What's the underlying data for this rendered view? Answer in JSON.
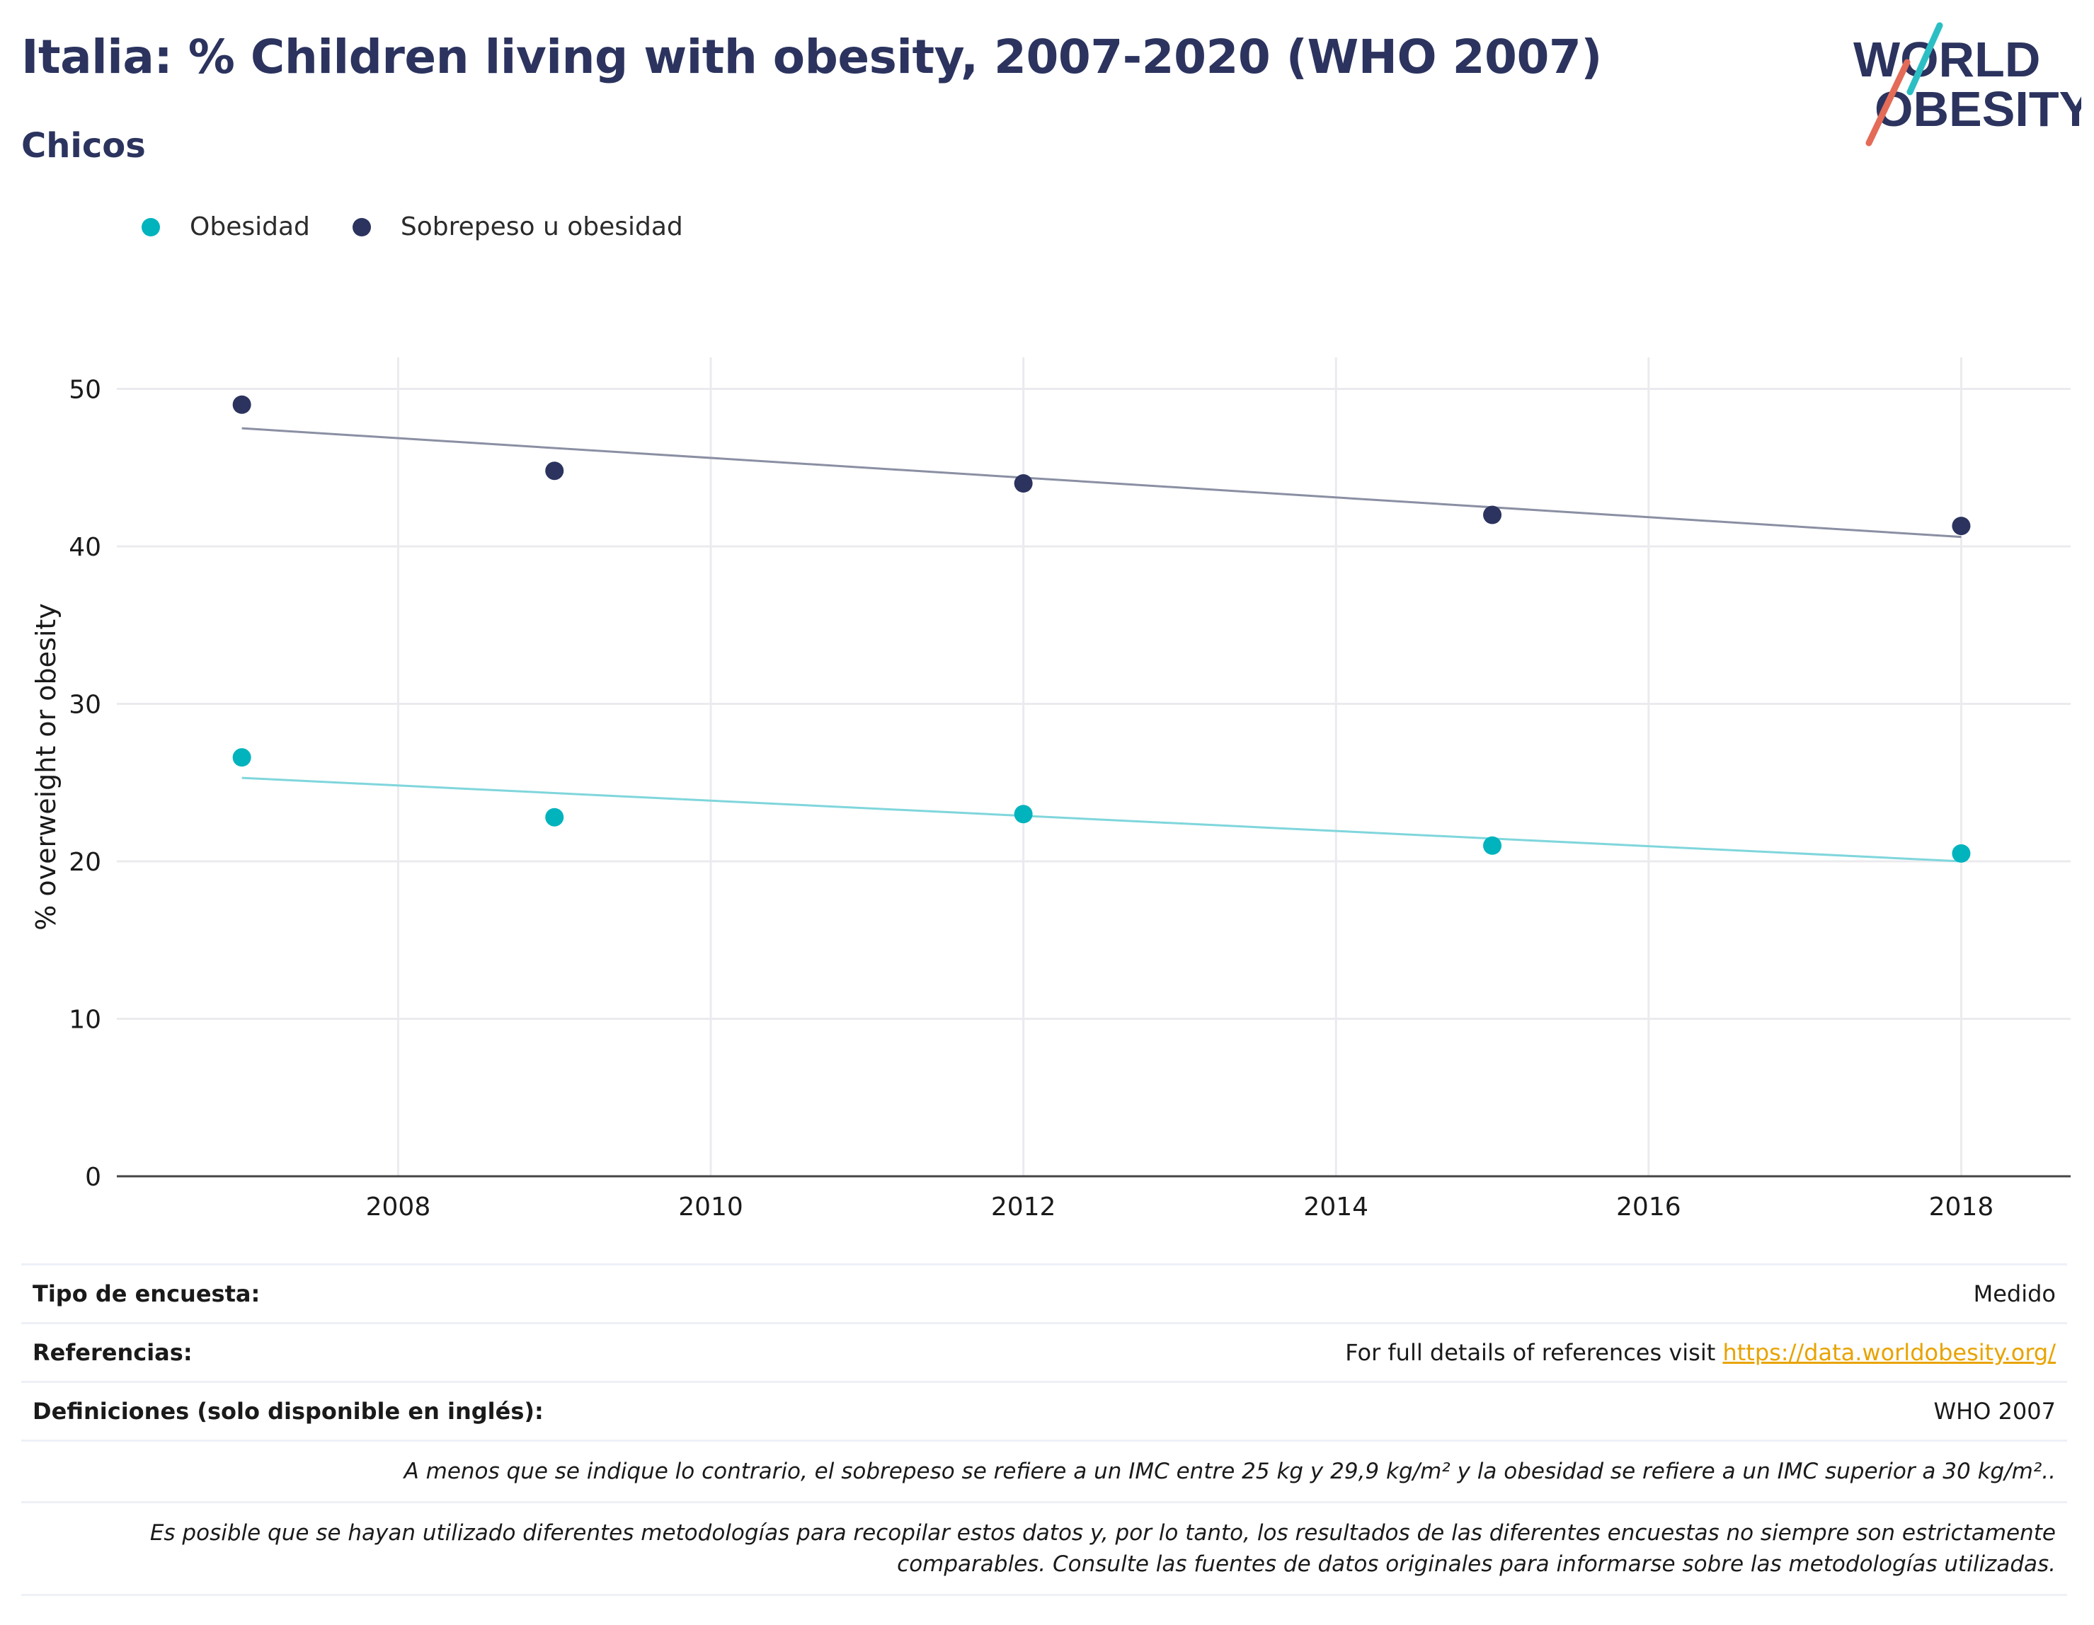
{
  "header": {
    "title": "Italia: % Children living with obesity, 2007-2020 (WHO 2007)",
    "subtitle": "Chicos"
  },
  "logo": {
    "line1": "WORLD",
    "line2": "OBESITY"
  },
  "colors": {
    "obesity": "#00b3bd",
    "overweight": "#2b335e",
    "obesity_trend": "#7fd6dc",
    "overweight_trend": "#8a8fa3",
    "title": "#2b335e",
    "link": "#e8a300"
  },
  "chart_data": {
    "type": "scatter",
    "ylabel": "% overweight or obesity",
    "xlabel": "",
    "ylim": [
      0,
      52
    ],
    "xlim": [
      2006.2,
      2018.7
    ],
    "x_ticks": [
      2008,
      2010,
      2012,
      2014,
      2016,
      2018
    ],
    "y_ticks": [
      0,
      10,
      20,
      30,
      40,
      50
    ],
    "grid": true,
    "legend_position": "top-left",
    "series": [
      {
        "name": "Obesidad",
        "color": "#00b3bd",
        "x": [
          2007,
          2009,
          2012,
          2015,
          2018
        ],
        "y": [
          26.6,
          22.8,
          23.0,
          21.0,
          20.5
        ],
        "trend": [
          [
            2007,
            25.3
          ],
          [
            2018,
            20.0
          ]
        ]
      },
      {
        "name": "Sobrepeso u obesidad",
        "color": "#2b335e",
        "x": [
          2007,
          2009,
          2012,
          2015,
          2018
        ],
        "y": [
          49.0,
          44.8,
          44.0,
          42.0,
          41.3
        ],
        "trend": [
          [
            2007,
            47.5
          ],
          [
            2018,
            40.6
          ]
        ]
      }
    ]
  },
  "info": {
    "survey_label": "Tipo de encuesta:",
    "survey_value": "Medido",
    "refs_label": "Referencias:",
    "refs_text": "For full details of references visit",
    "refs_link": "https://data.worldobesity.org/",
    "defs_label": "Definiciones (solo disponible en inglés):",
    "defs_value": "WHO 2007",
    "note1": "A menos que se indique lo contrario, el sobrepeso se refiere a un IMC entre 25 kg y 29,9 kg/m² y la obesidad se refiere a un IMC superior a 30 kg/m²..",
    "note2_line1": "Es posible que se hayan utilizado diferentes metodologías para recopilar estos datos y, por lo tanto, los resultados de las diferentes encuestas no siempre son estrictamente",
    "note2_line2": "comparables. Consulte las fuentes de datos originales para informarse sobre las metodologías utilizadas."
  }
}
